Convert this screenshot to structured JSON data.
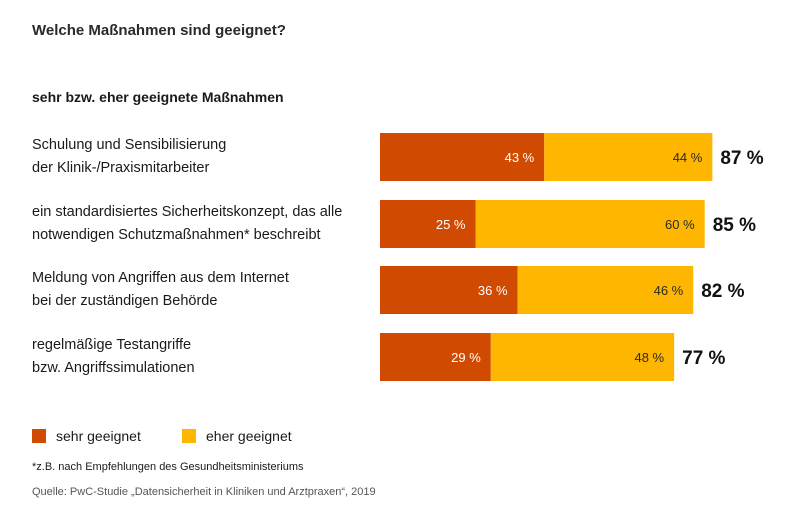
{
  "title": "Welche Maßnahmen sind geeignet?",
  "subtitle": "sehr bzw. eher geeignete Maßnahmen",
  "chart_data": {
    "type": "bar",
    "orientation": "horizontal",
    "stacked": true,
    "categories": [
      [
        "Schulung und Sensibilisierung",
        "der Klinik-/Praxismitarbeiter"
      ],
      [
        "ein standardisiertes Sicherheitskonzept, das alle",
        "notwendigen Schutzmaßnahmen* beschreibt"
      ],
      [
        "Meldung von Angriffen aus dem Internet",
        "bei der zuständigen Behörde"
      ],
      [
        "regelmäßige Testangriffe",
        "bzw. Angriffssimulationen"
      ]
    ],
    "series": [
      {
        "name": "sehr geeignet",
        "color": "#D04A02",
        "values": [
          43,
          25,
          36,
          29
        ],
        "labels": [
          "43 %",
          "25 %",
          "36 %",
          "29 %"
        ]
      },
      {
        "name": "eher geeignet",
        "color": "#FFB600",
        "values": [
          44,
          60,
          46,
          48
        ],
        "labels": [
          "44 %",
          "60 %",
          "46 %",
          "48 %"
        ]
      }
    ],
    "totals": [
      87,
      85,
      82,
      77
    ],
    "total_labels": [
      "87 %",
      "85 %",
      "82 %",
      "77 %"
    ],
    "xlim": [
      0,
      100
    ],
    "legend_position": "bottom-left"
  },
  "legend": {
    "items": [
      {
        "label": "sehr geeignet",
        "color": "#D04A02"
      },
      {
        "label": "eher geeignet",
        "color": "#FFB600"
      }
    ]
  },
  "footnote": "*z.B. nach Empfehlungen des Gesundheitsministeriums",
  "source": "Quelle: PwC-Studie „Datensicherheit in Kliniken und Arztpraxen“, 2019"
}
